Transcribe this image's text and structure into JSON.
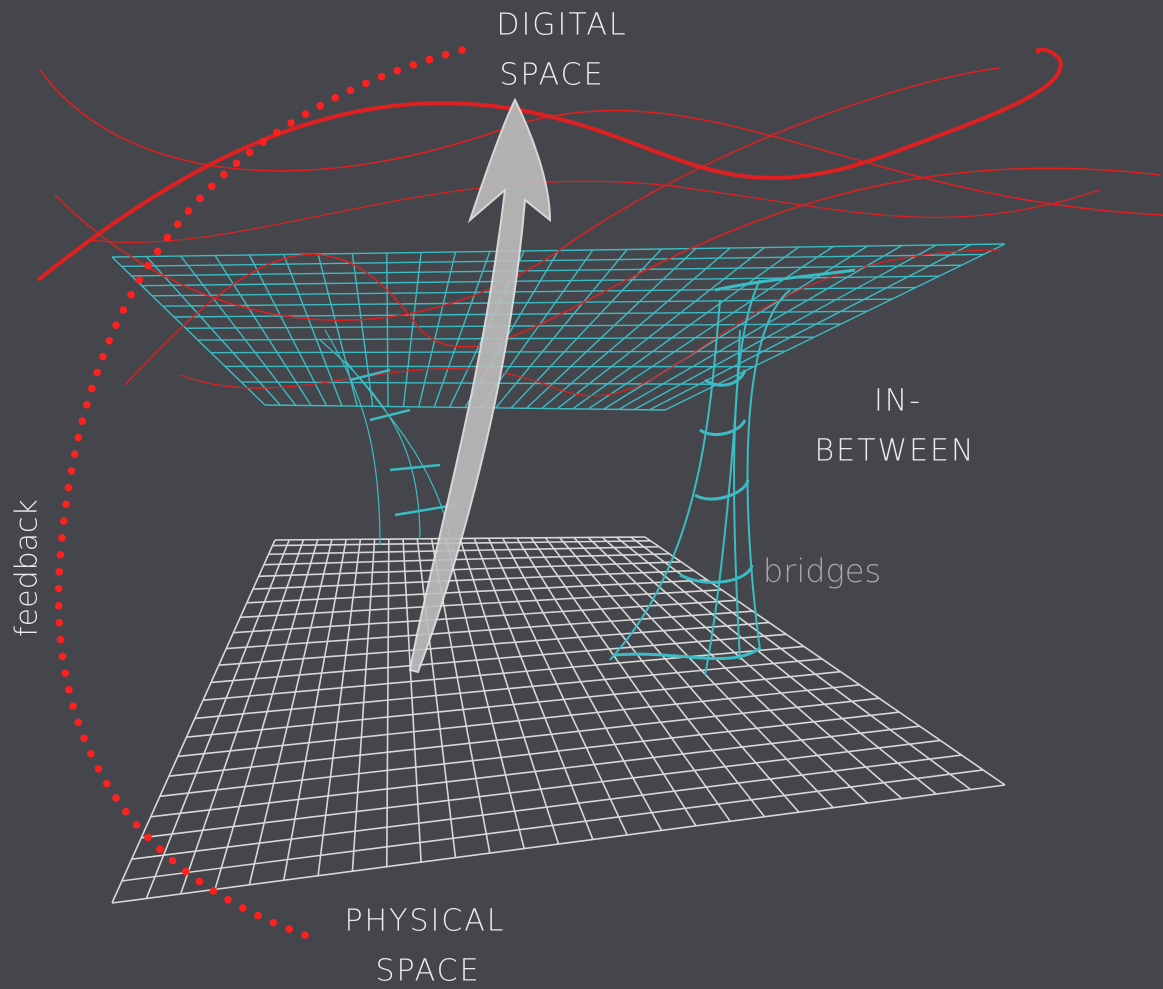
{
  "labels": {
    "digital": [
      "DIGITAL",
      "SPACE"
    ],
    "in_between": [
      "IN-",
      "BETWEEN"
    ],
    "physical": [
      "PHYSICAL",
      "SPACE"
    ],
    "bridges": "bridges",
    "feedback": "feedback"
  }
}
